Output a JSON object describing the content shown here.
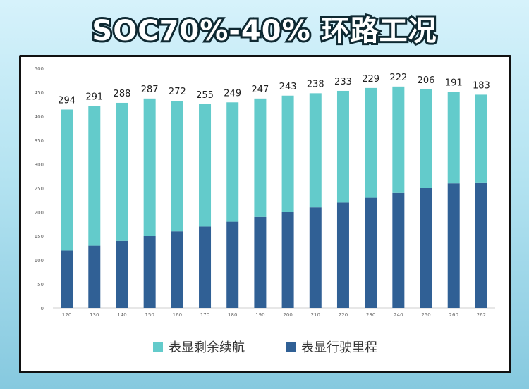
{
  "title": "SOC70%-40% 环路工况",
  "colors": {
    "remaining": "#63cbcb",
    "driven": "#306095"
  },
  "chart_data": {
    "type": "bar",
    "stacked": true,
    "categories": [
      "120",
      "130",
      "140",
      "150",
      "160",
      "170",
      "180",
      "190",
      "200",
      "210",
      "220",
      "230",
      "240",
      "250",
      "260",
      "262"
    ],
    "series": [
      {
        "name": "表显行驶里程",
        "values": [
          120,
          130,
          140,
          150,
          160,
          170,
          180,
          190,
          200,
          210,
          220,
          230,
          240,
          250,
          260,
          262
        ]
      },
      {
        "name": "表显剩余续航",
        "values": [
          294,
          291,
          288,
          287,
          272,
          255,
          249,
          247,
          243,
          238,
          233,
          229,
          222,
          206,
          191,
          183
        ]
      }
    ],
    "ylim": [
      0,
      500
    ],
    "yticks": [
      0,
      50,
      100,
      150,
      200,
      250,
      300,
      350,
      400,
      450,
      500
    ],
    "legend_position": "bottom",
    "grid": false
  }
}
